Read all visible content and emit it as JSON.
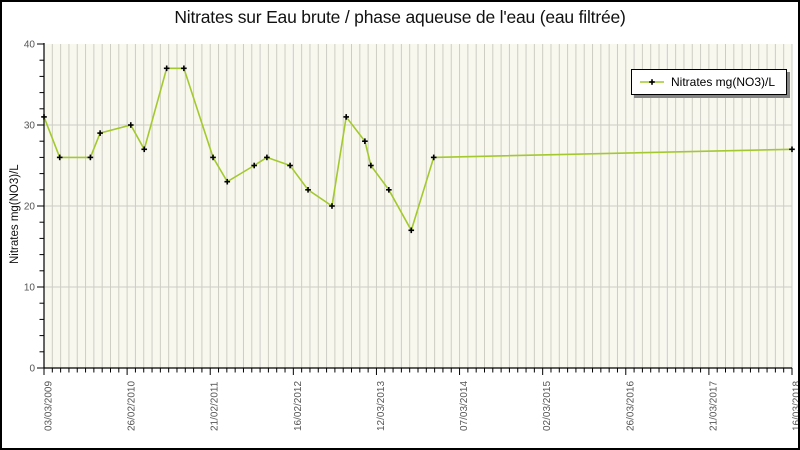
{
  "window": {
    "background": "#ffffff",
    "border_color": "#000000"
  },
  "chart_data": {
    "type": "line",
    "title": "Nitrates sur Eau brute / phase aqueuse de l'eau (eau filtrée)",
    "ylabel": "Nitrates mg(NO3)/L",
    "xlabel": "",
    "ylim": [
      0,
      40
    ],
    "y_major_ticks": [
      0,
      10,
      20,
      30,
      40
    ],
    "y_minor_step": 2,
    "x_tick_labels": [
      "03/03/2009",
      "26/02/2010",
      "21/02/2011",
      "16/02/2012",
      "12/03/2013",
      "07/03/2014",
      "02/03/2015",
      "26/03/2016",
      "21/03/2017",
      "16/03/2018"
    ],
    "x_minor_per_major": 10,
    "grid": {
      "horizontal_at": [
        10,
        20,
        30
      ],
      "vertical_stripes": true,
      "stripe_color": "#cdcdc4",
      "plot_bg": "#f8f8ef"
    },
    "legend": {
      "label": "Nitrates mg(NO3)/L",
      "position": "top-right"
    },
    "series": [
      {
        "name": "Nitrates mg(NO3)/L",
        "line_color": "#a4c92e",
        "marker": "black-cross",
        "marker_color": "#000000",
        "points": [
          {
            "x_frac": 0.0,
            "y": 31
          },
          {
            "x_frac": 0.021,
            "y": 26
          },
          {
            "x_frac": 0.062,
            "y": 26
          },
          {
            "x_frac": 0.075,
            "y": 29
          },
          {
            "x_frac": 0.116,
            "y": 30
          },
          {
            "x_frac": 0.134,
            "y": 27
          },
          {
            "x_frac": 0.164,
            "y": 37
          },
          {
            "x_frac": 0.187,
            "y": 37
          },
          {
            "x_frac": 0.226,
            "y": 26
          },
          {
            "x_frac": 0.245,
            "y": 23
          },
          {
            "x_frac": 0.281,
            "y": 25
          },
          {
            "x_frac": 0.298,
            "y": 26
          },
          {
            "x_frac": 0.329,
            "y": 25
          },
          {
            "x_frac": 0.353,
            "y": 22
          },
          {
            "x_frac": 0.385,
            "y": 20
          },
          {
            "x_frac": 0.404,
            "y": 31
          },
          {
            "x_frac": 0.429,
            "y": 28
          },
          {
            "x_frac": 0.437,
            "y": 25
          },
          {
            "x_frac": 0.461,
            "y": 22
          },
          {
            "x_frac": 0.491,
            "y": 17
          },
          {
            "x_frac": 0.521,
            "y": 26
          },
          {
            "x_frac": 1.0,
            "y": 27
          }
        ]
      }
    ]
  }
}
